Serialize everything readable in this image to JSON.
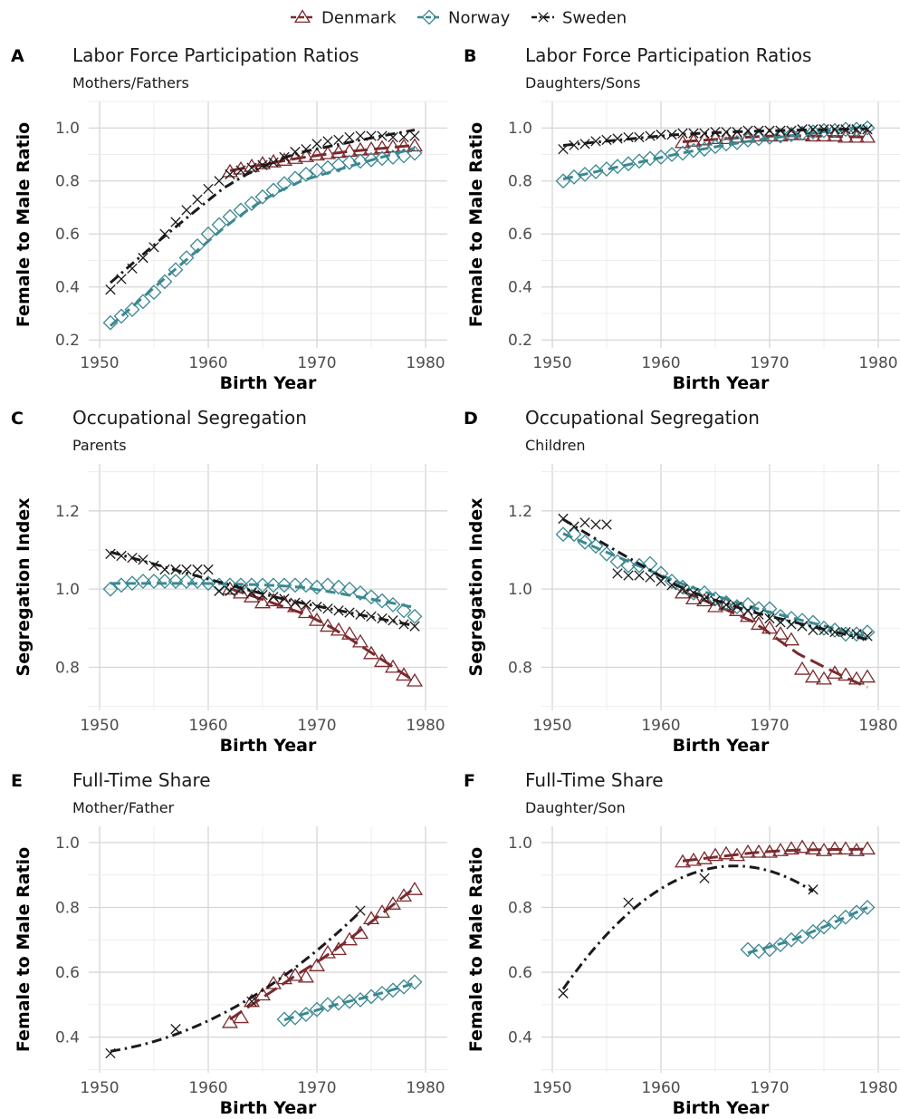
{
  "legend": {
    "position": "top-center",
    "entries": [
      {
        "name": "Denmark",
        "marker": "triangle-open",
        "color": "#7b2a2e",
        "dash": "long-dash"
      },
      {
        "name": "Norway",
        "marker": "diamond-open",
        "color": "#3b8891",
        "dash": "dash"
      },
      {
        "name": "Sweden",
        "marker": "x-cross",
        "color": "#1a1a1a",
        "dash": "dot-dash"
      }
    ]
  },
  "colors": {
    "Denmark": "#7b2a2e",
    "Norway": "#3b8891",
    "Sweden": "#1a1a1a"
  },
  "chart_data": [
    {
      "letter": "A",
      "type": "scatter",
      "title": "Labor Force Participation Ratios",
      "subtitle": "Mothers/Fathers",
      "xlabel": "Birth Year",
      "ylabel": "Female to Male Ratio",
      "xlim": [
        1949,
        1982
      ],
      "ylim": [
        0.17,
        1.1
      ],
      "xticks": [
        1950,
        1960,
        1970,
        1980
      ],
      "yticks": [
        0.2,
        0.4,
        0.6,
        0.8,
        1.0
      ],
      "series": [
        {
          "name": "Denmark",
          "x": [
            1962,
            1963,
            1964,
            1965,
            1966,
            1967,
            1968,
            1969,
            1970,
            1971,
            1972,
            1973,
            1974,
            1975,
            1976,
            1977,
            1978,
            1979
          ],
          "y": [
            0.835,
            0.845,
            0.855,
            0.865,
            0.872,
            0.878,
            0.885,
            0.892,
            0.898,
            0.903,
            0.908,
            0.912,
            0.917,
            0.92,
            0.925,
            0.928,
            0.93,
            0.932
          ]
        },
        {
          "name": "Norway",
          "x": [
            1951,
            1952,
            1953,
            1954,
            1955,
            1956,
            1957,
            1958,
            1959,
            1960,
            1961,
            1962,
            1963,
            1964,
            1965,
            1966,
            1967,
            1968,
            1969,
            1970,
            1971,
            1972,
            1973,
            1974,
            1975,
            1976,
            1977,
            1978,
            1979
          ],
          "y": [
            0.265,
            0.29,
            0.315,
            0.345,
            0.38,
            0.42,
            0.465,
            0.51,
            0.555,
            0.6,
            0.635,
            0.665,
            0.69,
            0.715,
            0.74,
            0.765,
            0.79,
            0.81,
            0.825,
            0.84,
            0.85,
            0.86,
            0.87,
            0.875,
            0.88,
            0.885,
            0.89,
            0.895,
            0.905
          ]
        },
        {
          "name": "Sweden",
          "x": [
            1951,
            1952,
            1953,
            1954,
            1955,
            1956,
            1957,
            1958,
            1959,
            1960,
            1961,
            1962,
            1963,
            1964,
            1965,
            1966,
            1967,
            1968,
            1969,
            1970,
            1971,
            1972,
            1973,
            1974,
            1975,
            1976,
            1977,
            1978,
            1979
          ],
          "y": [
            0.39,
            0.43,
            0.47,
            0.51,
            0.55,
            0.6,
            0.645,
            0.69,
            0.73,
            0.77,
            0.8,
            0.825,
            0.84,
            0.85,
            0.86,
            0.87,
            0.89,
            0.91,
            0.92,
            0.94,
            0.95,
            0.955,
            0.965,
            0.97,
            0.97,
            0.97,
            0.965,
            0.965,
            0.97
          ]
        }
      ]
    },
    {
      "letter": "B",
      "type": "scatter",
      "title": "Labor Force Participation Ratios",
      "subtitle": "Daughters/Sons",
      "xlabel": "Birth Year",
      "ylabel": "Female to Male Ratio",
      "xlim": [
        1949,
        1982
      ],
      "ylim": [
        0.17,
        1.1
      ],
      "xticks": [
        1950,
        1960,
        1970,
        1980
      ],
      "yticks": [
        0.2,
        0.4,
        0.6,
        0.8,
        1.0
      ],
      "series": [
        {
          "name": "Denmark",
          "x": [
            1962,
            1963,
            1964,
            1965,
            1966,
            1967,
            1968,
            1969,
            1970,
            1971,
            1972,
            1973,
            1974,
            1975,
            1976,
            1977,
            1978,
            1979
          ],
          "y": [
            0.945,
            0.95,
            0.955,
            0.96,
            0.96,
            0.965,
            0.965,
            0.97,
            0.97,
            0.97,
            0.975,
            0.975,
            0.97,
            0.97,
            0.97,
            0.965,
            0.965,
            0.965
          ]
        },
        {
          "name": "Norway",
          "x": [
            1951,
            1952,
            1953,
            1954,
            1955,
            1956,
            1957,
            1958,
            1959,
            1960,
            1961,
            1962,
            1963,
            1964,
            1965,
            1966,
            1967,
            1968,
            1969,
            1970,
            1971,
            1972,
            1973,
            1974,
            1975,
            1976,
            1977,
            1978,
            1979
          ],
          "y": [
            0.8,
            0.815,
            0.825,
            0.835,
            0.845,
            0.855,
            0.865,
            0.875,
            0.885,
            0.89,
            0.9,
            0.905,
            0.915,
            0.92,
            0.93,
            0.94,
            0.945,
            0.955,
            0.96,
            0.965,
            0.97,
            0.975,
            0.98,
            0.985,
            0.99,
            0.99,
            0.995,
            0.995,
            1.0
          ]
        },
        {
          "name": "Sweden",
          "x": [
            1951,
            1952,
            1953,
            1954,
            1955,
            1956,
            1957,
            1958,
            1959,
            1960,
            1961,
            1962,
            1963,
            1964,
            1965,
            1966,
            1967,
            1968,
            1969,
            1970,
            1971,
            1972,
            1973,
            1974,
            1975,
            1976,
            1977,
            1978,
            1979
          ],
          "y": [
            0.92,
            0.935,
            0.94,
            0.95,
            0.955,
            0.96,
            0.965,
            0.965,
            0.97,
            0.975,
            0.975,
            0.98,
            0.98,
            0.98,
            0.985,
            0.985,
            0.985,
            0.99,
            0.99,
            0.99,
            0.99,
            0.99,
            0.995,
            0.995,
            0.995,
            0.995,
            0.995,
            0.995,
            0.995
          ]
        }
      ]
    },
    {
      "letter": "C",
      "type": "scatter",
      "title": "Occupational Segregation",
      "subtitle": "Parents",
      "xlabel": "Birth Year",
      "ylabel": "Segregation Index",
      "xlim": [
        1949,
        1982
      ],
      "ylim": [
        0.69,
        1.32
      ],
      "xticks": [
        1950,
        1960,
        1970,
        1980
      ],
      "yticks": [
        0.8,
        1.0,
        1.2
      ],
      "series": [
        {
          "name": "Denmark",
          "x": [
            1962,
            1963,
            1964,
            1965,
            1966,
            1967,
            1968,
            1969,
            1970,
            1971,
            1972,
            1973,
            1974,
            1975,
            1976,
            1977,
            1978,
            1979
          ],
          "y": [
            1.0,
            0.99,
            0.98,
            0.965,
            0.97,
            0.965,
            0.955,
            0.94,
            0.92,
            0.905,
            0.895,
            0.885,
            0.865,
            0.835,
            0.815,
            0.8,
            0.78,
            0.765
          ]
        },
        {
          "name": "Norway",
          "x": [
            1951,
            1952,
            1953,
            1954,
            1955,
            1956,
            1957,
            1958,
            1959,
            1960,
            1961,
            1962,
            1963,
            1964,
            1965,
            1966,
            1967,
            1968,
            1969,
            1970,
            1971,
            1972,
            1973,
            1974,
            1975,
            1976,
            1977,
            1978,
            1979
          ],
          "y": [
            1.0,
            1.01,
            1.015,
            1.02,
            1.02,
            1.02,
            1.02,
            1.02,
            1.02,
            1.015,
            1.01,
            1.01,
            1.01,
            1.01,
            1.01,
            1.01,
            1.01,
            1.01,
            1.01,
            1.005,
            1.01,
            1.005,
            1.0,
            0.99,
            0.98,
            0.97,
            0.96,
            0.945,
            0.93
          ]
        },
        {
          "name": "Sweden",
          "x": [
            1951,
            1952,
            1953,
            1954,
            1955,
            1956,
            1957,
            1958,
            1959,
            1960,
            1961,
            1962,
            1963,
            1964,
            1965,
            1966,
            1967,
            1968,
            1969,
            1970,
            1971,
            1972,
            1973,
            1974,
            1975,
            1976,
            1977,
            1978,
            1979
          ],
          "y": [
            1.09,
            1.085,
            1.08,
            1.075,
            1.06,
            1.05,
            1.05,
            1.05,
            1.05,
            1.05,
            0.995,
            0.995,
            1.0,
            0.99,
            0.985,
            0.98,
            0.975,
            0.965,
            0.96,
            0.955,
            0.95,
            0.945,
            0.94,
            0.935,
            0.93,
            0.925,
            0.92,
            0.91,
            0.905
          ]
        }
      ]
    },
    {
      "letter": "D",
      "type": "scatter",
      "title": "Occupational Segregation",
      "subtitle": "Children",
      "xlabel": "Birth Year",
      "ylabel": "Segregation Index",
      "xlim": [
        1949,
        1982
      ],
      "ylim": [
        0.69,
        1.32
      ],
      "xticks": [
        1950,
        1960,
        1970,
        1980
      ],
      "yticks": [
        0.8,
        1.0,
        1.2
      ],
      "series": [
        {
          "name": "Denmark",
          "x": [
            1962,
            1963,
            1964,
            1965,
            1966,
            1967,
            1968,
            1969,
            1970,
            1971,
            1972,
            1973,
            1974,
            1975,
            1976,
            1977,
            1978,
            1979
          ],
          "y": [
            0.99,
            0.975,
            0.97,
            0.955,
            0.96,
            0.945,
            0.93,
            0.91,
            0.9,
            0.885,
            0.87,
            0.795,
            0.775,
            0.77,
            0.785,
            0.78,
            0.77,
            0.775
          ]
        },
        {
          "name": "Norway",
          "x": [
            1951,
            1952,
            1953,
            1954,
            1955,
            1956,
            1957,
            1958,
            1959,
            1960,
            1961,
            1962,
            1963,
            1964,
            1965,
            1966,
            1967,
            1968,
            1969,
            1970,
            1971,
            1972,
            1973,
            1974,
            1975,
            1976,
            1977,
            1978,
            1979
          ],
          "y": [
            1.14,
            1.14,
            1.12,
            1.11,
            1.09,
            1.07,
            1.06,
            1.06,
            1.065,
            1.04,
            1.02,
            1.005,
            0.99,
            0.99,
            0.975,
            0.965,
            0.955,
            0.96,
            0.95,
            0.95,
            0.93,
            0.925,
            0.92,
            0.915,
            0.9,
            0.895,
            0.885,
            0.885,
            0.89
          ]
        },
        {
          "name": "Sweden",
          "x": [
            1951,
            1952,
            1953,
            1954,
            1955,
            1956,
            1957,
            1958,
            1959,
            1960,
            1961,
            1962,
            1963,
            1964,
            1965,
            1966,
            1967,
            1968,
            1969,
            1970,
            1971,
            1972,
            1973,
            1974,
            1975,
            1976,
            1977,
            1978,
            1979
          ],
          "y": [
            1.18,
            1.16,
            1.17,
            1.165,
            1.165,
            1.04,
            1.035,
            1.035,
            1.03,
            1.02,
            1.01,
            1.0,
            0.99,
            0.975,
            0.97,
            0.96,
            0.955,
            0.945,
            0.935,
            0.925,
            0.915,
            0.91,
            0.905,
            0.895,
            0.895,
            0.89,
            0.89,
            0.885,
            0.88
          ]
        }
      ]
    },
    {
      "letter": "E",
      "type": "scatter",
      "title": "Full-Time Share",
      "subtitle": "Mother/Father",
      "xlabel": "Birth Year",
      "ylabel": "Female to Male Ratio",
      "xlim": [
        1949,
        1982
      ],
      "ylim": [
        0.29,
        1.05
      ],
      "xticks": [
        1950,
        1960,
        1970,
        1980
      ],
      "yticks": [
        0.4,
        0.6,
        0.8,
        1.0
      ],
      "series": [
        {
          "name": "Denmark",
          "x": [
            1962,
            1963,
            1964,
            1965,
            1966,
            1967,
            1968,
            1969,
            1970,
            1971,
            1972,
            1973,
            1974,
            1975,
            1976,
            1977,
            1978,
            1979
          ],
          "y": [
            0.445,
            0.46,
            0.51,
            0.53,
            0.565,
            0.58,
            0.59,
            0.585,
            0.62,
            0.66,
            0.67,
            0.7,
            0.72,
            0.765,
            0.785,
            0.81,
            0.835,
            0.855
          ]
        },
        {
          "name": "Norway",
          "x": [
            1967,
            1968,
            1969,
            1970,
            1971,
            1972,
            1973,
            1974,
            1975,
            1976,
            1977,
            1978,
            1979
          ],
          "y": [
            0.455,
            0.46,
            0.47,
            0.485,
            0.5,
            0.505,
            0.51,
            0.515,
            0.525,
            0.535,
            0.545,
            0.555,
            0.57
          ]
        },
        {
          "name": "Sweden",
          "x": [
            1951,
            1957,
            1964,
            1974
          ],
          "y": [
            0.35,
            0.425,
            0.51,
            0.79
          ]
        }
      ]
    },
    {
      "letter": "F",
      "type": "scatter",
      "title": "Full-Time Share",
      "subtitle": "Daughter/Son",
      "xlabel": "Birth Year",
      "ylabel": "Female to Male Ratio",
      "xlim": [
        1949,
        1982
      ],
      "ylim": [
        0.29,
        1.05
      ],
      "xticks": [
        1950,
        1960,
        1970,
        1980
      ],
      "yticks": [
        0.4,
        0.6,
        0.8,
        1.0
      ],
      "series": [
        {
          "name": "Denmark",
          "x": [
            1962,
            1963,
            1964,
            1965,
            1966,
            1967,
            1968,
            1969,
            1970,
            1971,
            1972,
            1973,
            1974,
            1975,
            1976,
            1977,
            1978,
            1979
          ],
          "y": [
            0.94,
            0.945,
            0.95,
            0.96,
            0.965,
            0.96,
            0.97,
            0.97,
            0.97,
            0.975,
            0.98,
            0.985,
            0.98,
            0.975,
            0.98,
            0.98,
            0.975,
            0.98
          ]
        },
        {
          "name": "Norway",
          "x": [
            1968,
            1969,
            1970,
            1971,
            1972,
            1973,
            1974,
            1975,
            1976,
            1977,
            1978,
            1979
          ],
          "y": [
            0.67,
            0.665,
            0.67,
            0.685,
            0.7,
            0.71,
            0.725,
            0.74,
            0.755,
            0.77,
            0.785,
            0.8
          ]
        },
        {
          "name": "Sweden",
          "x": [
            1951,
            1957,
            1964,
            1974
          ],
          "y": [
            0.535,
            0.815,
            0.89,
            0.855
          ]
        }
      ]
    }
  ]
}
